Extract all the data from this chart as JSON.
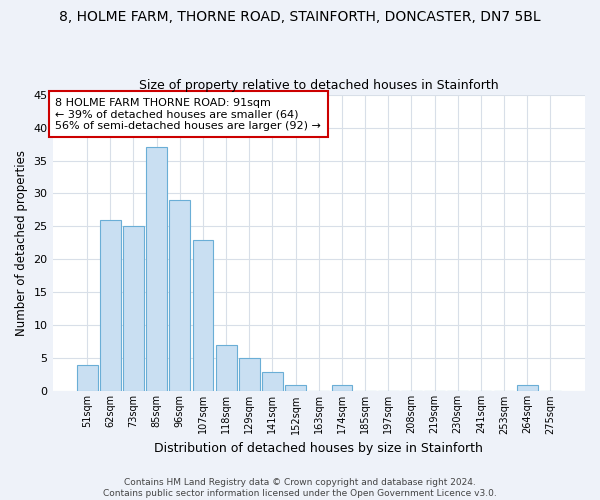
{
  "title": "8, HOLME FARM, THORNE ROAD, STAINFORTH, DONCASTER, DN7 5BL",
  "subtitle": "Size of property relative to detached houses in Stainforth",
  "xlabel": "Distribution of detached houses by size in Stainforth",
  "ylabel": "Number of detached properties",
  "bar_labels": [
    "51sqm",
    "62sqm",
    "73sqm",
    "85sqm",
    "96sqm",
    "107sqm",
    "118sqm",
    "129sqm",
    "141sqm",
    "152sqm",
    "163sqm",
    "174sqm",
    "185sqm",
    "197sqm",
    "208sqm",
    "219sqm",
    "230sqm",
    "241sqm",
    "253sqm",
    "264sqm",
    "275sqm"
  ],
  "bar_values": [
    4,
    26,
    25,
    37,
    29,
    23,
    7,
    5,
    3,
    1,
    0,
    1,
    0,
    0,
    0,
    0,
    0,
    0,
    0,
    1,
    0
  ],
  "bar_color": "#c9dff2",
  "bar_edge_color": "#6aaed6",
  "ylim": [
    0,
    45
  ],
  "yticks": [
    0,
    5,
    10,
    15,
    20,
    25,
    30,
    35,
    40,
    45
  ],
  "annotation_title": "8 HOLME FARM THORNE ROAD: 91sqm",
  "annotation_line2": "← 39% of detached houses are smaller (64)",
  "annotation_line3": "56% of semi-detached houses are larger (92) →",
  "annotation_box_color": "#ffffff",
  "annotation_box_edge": "#cc0000",
  "footer1": "Contains HM Land Registry data © Crown copyright and database right 2024.",
  "footer2": "Contains public sector information licensed under the Open Government Licence v3.0.",
  "background_color": "#eef2f9",
  "plot_bg_color": "#ffffff",
  "grid_color": "#d8dfe8",
  "title_fontsize": 10,
  "subtitle_fontsize": 9
}
